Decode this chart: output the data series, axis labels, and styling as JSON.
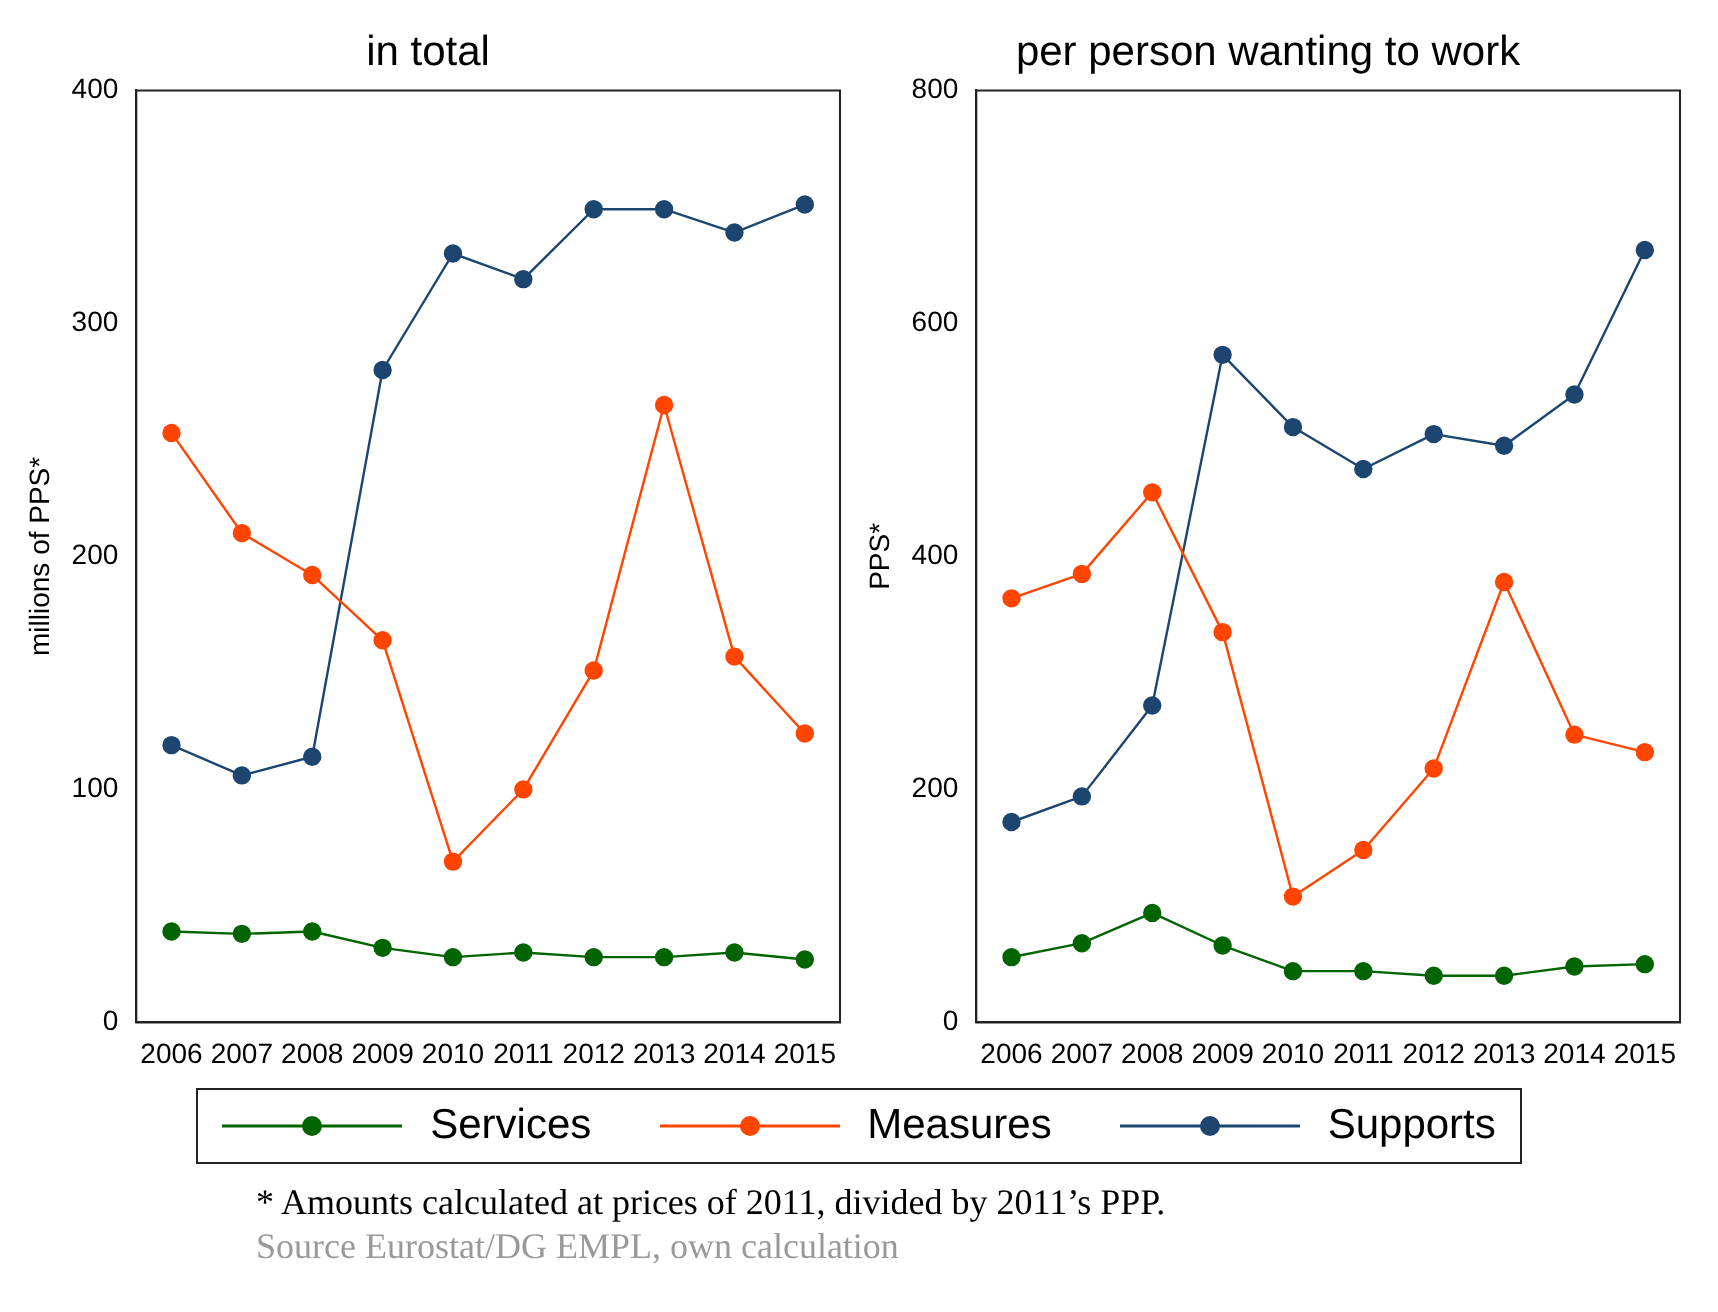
{
  "chart_data": [
    {
      "type": "line",
      "title": "in total",
      "ylabel": "millions of PPS*",
      "categories": [
        "2006",
        "2007",
        "2008",
        "2009",
        "2010",
        "2011",
        "2012",
        "2013",
        "2014",
        "2015"
      ],
      "ylim": [
        0,
        400
      ],
      "yticks": [
        0,
        100,
        200,
        300,
        400
      ],
      "grid": false,
      "legend": "bottom",
      "marker": "circle",
      "line_style": "solid",
      "series": [
        {
          "name": "Services",
          "color": "#006400",
          "values": [
            39,
            38,
            39,
            32,
            28,
            30,
            28,
            28,
            30,
            27
          ]
        },
        {
          "name": "Measures",
          "color": "#ff4500",
          "values": [
            253,
            210,
            192,
            164,
            69,
            100,
            151,
            265,
            157,
            124
          ]
        },
        {
          "name": "Supports",
          "color": "#1c4670",
          "values": [
            119,
            106,
            114,
            280,
            330,
            319,
            349,
            349,
            339,
            351
          ]
        }
      ]
    },
    {
      "type": "line",
      "title": "per person wanting to work",
      "ylabel": "PPS*",
      "categories": [
        "2006",
        "2007",
        "2008",
        "2009",
        "2010",
        "2011",
        "2012",
        "2013",
        "2014",
        "2015"
      ],
      "ylim": [
        0,
        800
      ],
      "yticks": [
        0,
        200,
        400,
        600,
        800
      ],
      "grid": false,
      "legend": "bottom",
      "marker": "circle",
      "line_style": "solid",
      "annotations": [
        "*  Amounts calculated at prices of 2011, divided by 2011’s PPP.",
        "Source Eurostat/DG EMPL, own calculation"
      ],
      "series": [
        {
          "name": "Services",
          "color": "#006400",
          "values": [
            56,
            68,
            94,
            66,
            44,
            44,
            40,
            40,
            48,
            50
          ]
        },
        {
          "name": "Measures",
          "color": "#ff4500",
          "values": [
            364,
            385,
            455,
            335,
            108,
            148,
            218,
            378,
            247,
            232
          ]
        },
        {
          "name": "Supports",
          "color": "#1c4670",
          "values": [
            172,
            194,
            272,
            573,
            511,
            475,
            505,
            495,
            539,
            663
          ]
        }
      ]
    }
  ]
}
